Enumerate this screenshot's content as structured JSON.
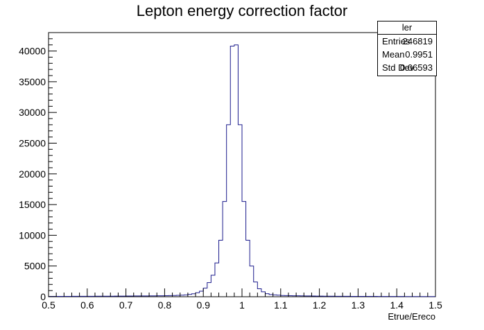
{
  "chart_data": {
    "type": "bar",
    "title": "Lepton energy correction factor",
    "xlabel": "Etrue/Ereco",
    "ylabel": "",
    "xlim": [
      0.5,
      1.5
    ],
    "ylim": [
      0,
      43000
    ],
    "bin_width": 0.01,
    "x_ticks": [
      "0.5",
      "0.6",
      "0.7",
      "0.8",
      "0.9",
      "1",
      "1.1",
      "1.2",
      "1.3",
      "1.4",
      "1.5"
    ],
    "y_ticks": [
      "0",
      "5000",
      "10000",
      "15000",
      "20000",
      "25000",
      "30000",
      "35000",
      "40000"
    ],
    "series": [
      {
        "name": "ler",
        "color": "#1a1a8c",
        "values": [
          50,
          55,
          55,
          60,
          60,
          60,
          65,
          65,
          70,
          70,
          75,
          75,
          80,
          80,
          85,
          90,
          90,
          95,
          100,
          100,
          110,
          110,
          120,
          120,
          130,
          130,
          140,
          140,
          150,
          160,
          170,
          180,
          200,
          220,
          250,
          300,
          380,
          480,
          650,
          900,
          1400,
          2300,
          3500,
          5500,
          9200,
          15500,
          28000,
          40800,
          41000,
          28000,
          15500,
          9200,
          5000,
          2400,
          1300,
          800,
          500,
          350,
          300,
          250,
          200,
          180,
          170,
          160,
          150,
          140,
          130,
          120,
          110,
          100,
          95,
          90,
          85,
          80,
          75,
          70,
          70,
          65,
          60,
          60,
          55,
          55,
          50,
          50,
          50,
          45,
          45,
          45,
          40,
          40,
          40,
          40,
          35,
          35,
          35,
          35,
          30,
          30,
          30,
          30
        ]
      }
    ],
    "legend": "top-right",
    "grid": false
  },
  "stats": {
    "name": "ler",
    "rows": [
      {
        "label": "Entries",
        "value": "246819"
      },
      {
        "label": "Mean",
        "value": "0.9951"
      },
      {
        "label": "Std Dev",
        "value": "0.06593"
      }
    ]
  }
}
